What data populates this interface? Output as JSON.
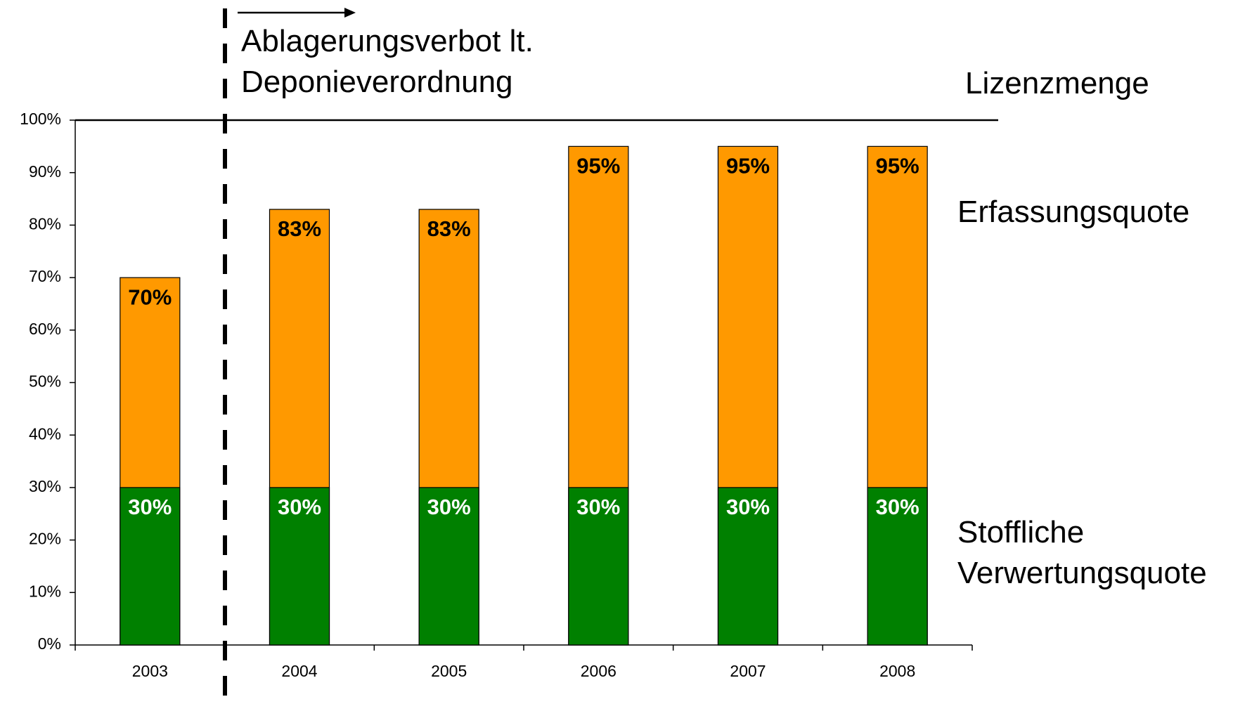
{
  "chart_data": {
    "type": "bar",
    "categories": [
      "2003",
      "2004",
      "2005",
      "2006",
      "2007",
      "2008"
    ],
    "series": [
      {
        "name": "Erfassungsquote",
        "color": "#ff9900",
        "values": [
          70,
          83,
          83,
          95,
          95,
          95
        ],
        "value_labels": [
          "70%",
          "83%",
          "83%",
          "95%",
          "95%",
          "95%"
        ],
        "label_color": "#000000"
      },
      {
        "name": "Stoffliche Verwertungsquote",
        "color": "#008000",
        "values": [
          30,
          30,
          30,
          30,
          30,
          30
        ],
        "value_labels": [
          "30%",
          "30%",
          "30%",
          "30%",
          "30%",
          "30%"
        ],
        "label_color": "#ffffff"
      }
    ],
    "ylim": [
      0,
      100
    ],
    "yticks": [
      {
        "value": 0,
        "label": "0%"
      },
      {
        "value": 10,
        "label": "10%"
      },
      {
        "value": 20,
        "label": "20%"
      },
      {
        "value": 30,
        "label": "30%"
      },
      {
        "value": 40,
        "label": "40%"
      },
      {
        "value": 50,
        "label": "50%"
      },
      {
        "value": 60,
        "label": "60%"
      },
      {
        "value": 70,
        "label": "70%"
      },
      {
        "value": 80,
        "label": "80%"
      },
      {
        "value": 90,
        "label": "90%"
      },
      {
        "value": 100,
        "label": "100%"
      }
    ],
    "reference_line": {
      "value": 100,
      "label": "Lizenzmenge"
    },
    "annotation": "Ablagerungsverbot lt. Deponieverordnung"
  }
}
